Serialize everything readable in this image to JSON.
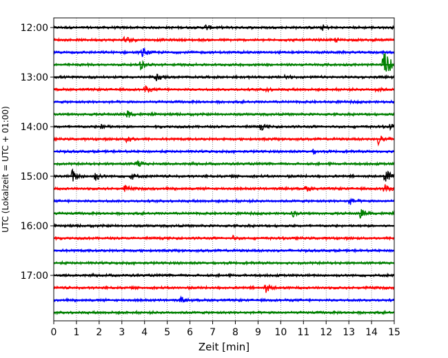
{
  "chart_data": {
    "type": "line",
    "subtype": "helicorder",
    "title": "",
    "xlabel": "Zeit  [min]",
    "ylabel": "UTC (Lokalzeit = UTC + 01:00)",
    "xlim": [
      0,
      15
    ],
    "x_ticks": [
      0,
      1,
      2,
      3,
      4,
      5,
      6,
      7,
      8,
      9,
      10,
      11,
      12,
      13,
      14,
      15
    ],
    "y_ticks": [
      "12:00",
      "13:00",
      "14:00",
      "15:00",
      "16:00",
      "17:00"
    ],
    "grid": "vertical dotted",
    "trace_minutes_per_line": 15,
    "color_cycle": [
      "#000000",
      "#ff0000",
      "#0000ff",
      "#008000"
    ],
    "traces": [
      {
        "start": "12:00",
        "color": "#000000",
        "events": [
          [
            6.7,
            0.3
          ],
          [
            11.8,
            0.35
          ]
        ]
      },
      {
        "start": "12:15",
        "color": "#ff0000",
        "events": [
          [
            3.1,
            0.55
          ],
          [
            12.4,
            0.2
          ]
        ]
      },
      {
        "start": "12:30",
        "color": "#0000ff",
        "events": [
          [
            3.9,
            0.45
          ]
        ]
      },
      {
        "start": "12:45",
        "color": "#008000",
        "events": [
          [
            3.8,
            0.5
          ],
          [
            14.5,
            1.6
          ]
        ]
      },
      {
        "start": "13:00",
        "color": "#000000",
        "events": [
          [
            4.5,
            0.35
          ],
          [
            10.1,
            0.4
          ]
        ]
      },
      {
        "start": "13:15",
        "color": "#ff0000",
        "events": [
          [
            4.0,
            0.4
          ],
          [
            9.3,
            0.3
          ],
          [
            14.2,
            0.3
          ]
        ]
      },
      {
        "start": "13:30",
        "color": "#0000ff",
        "events": []
      },
      {
        "start": "13:45",
        "color": "#008000",
        "events": [
          [
            3.2,
            0.5
          ]
        ]
      },
      {
        "start": "14:00",
        "color": "#000000",
        "events": [
          [
            2.1,
            0.4
          ],
          [
            9.1,
            0.35
          ],
          [
            14.8,
            0.3
          ]
        ]
      },
      {
        "start": "14:15",
        "color": "#ff0000",
        "events": [
          [
            3.2,
            0.45
          ],
          [
            14.3,
            0.6
          ]
        ]
      },
      {
        "start": "14:30",
        "color": "#0000ff",
        "events": [
          [
            11.4,
            0.2
          ]
        ]
      },
      {
        "start": "14:45",
        "color": "#008000",
        "events": [
          [
            3.6,
            0.55
          ]
        ]
      },
      {
        "start": "15:00",
        "color": "#000000",
        "events": [
          [
            0.8,
            0.7
          ],
          [
            1.8,
            0.5
          ],
          [
            3.4,
            0.4
          ],
          [
            14.6,
            0.8
          ]
        ]
      },
      {
        "start": "15:15",
        "color": "#ff0000",
        "events": [
          [
            3.1,
            0.35
          ],
          [
            11.1,
            0.3
          ],
          [
            14.5,
            0.55
          ]
        ]
      },
      {
        "start": "15:30",
        "color": "#0000ff",
        "events": [
          [
            13.0,
            0.45
          ]
        ]
      },
      {
        "start": "15:45",
        "color": "#008000",
        "events": [
          [
            10.5,
            0.35
          ],
          [
            13.5,
            0.6
          ]
        ]
      },
      {
        "start": "16:00",
        "color": "#000000",
        "events": []
      },
      {
        "start": "16:15",
        "color": "#ff0000",
        "events": [
          [
            7.9,
            0.2
          ]
        ]
      },
      {
        "start": "16:30",
        "color": "#0000ff",
        "events": []
      },
      {
        "start": "16:45",
        "color": "#008000",
        "events": []
      },
      {
        "start": "17:00",
        "color": "#000000",
        "events": []
      },
      {
        "start": "17:15",
        "color": "#ff0000",
        "events": [
          [
            9.3,
            0.55
          ]
        ]
      },
      {
        "start": "17:30",
        "color": "#0000ff",
        "events": [
          [
            5.6,
            0.25
          ]
        ]
      },
      {
        "start": "17:45",
        "color": "#008000",
        "events": []
      }
    ]
  }
}
